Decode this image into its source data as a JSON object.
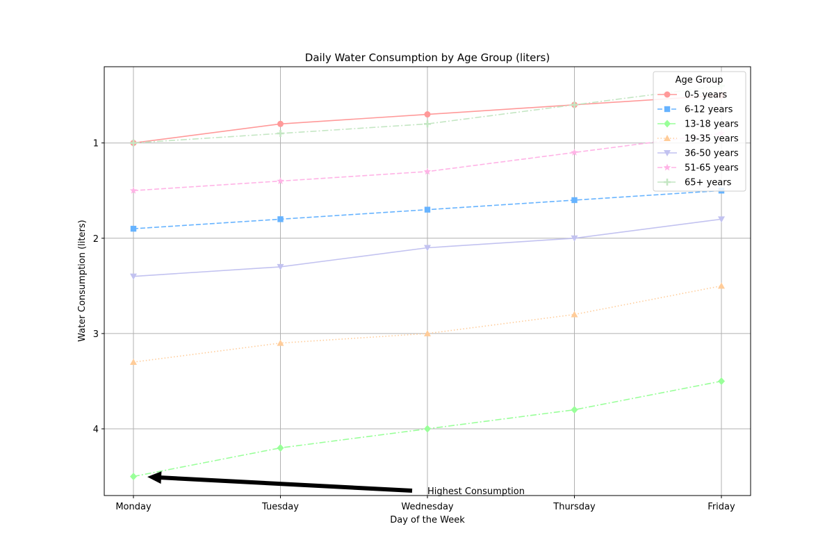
{
  "chart_data": {
    "type": "line",
    "title": "Daily Water Consumption by Age Group (liters)",
    "xlabel": "Day of the Week",
    "ylabel": "Water Consumption (liters)",
    "categories": [
      "Monday",
      "Tuesday",
      "Wednesday",
      "Thursday",
      "Friday"
    ],
    "y_inverted": true,
    "ylim": [
      4.7,
      0.2
    ],
    "yticks": [
      1,
      2,
      3,
      4
    ],
    "grid": true,
    "legend": {
      "title": "Age Group",
      "placement": "top-right"
    },
    "series": [
      {
        "name": "0-5 years",
        "values": [
          1.0,
          0.8,
          0.7,
          0.6,
          0.5
        ],
        "color": "#ff9999",
        "dash": "solid",
        "marker": "circle"
      },
      {
        "name": "6-12 years",
        "values": [
          1.9,
          1.8,
          1.7,
          1.6,
          1.5
        ],
        "color": "#66b3ff",
        "dash": "dashed",
        "marker": "square"
      },
      {
        "name": "13-18 years",
        "values": [
          4.5,
          4.2,
          4.0,
          3.8,
          3.5
        ],
        "color": "#99ff99",
        "dash": "dashdot",
        "marker": "diamond"
      },
      {
        "name": "19-35 years",
        "values": [
          3.3,
          3.1,
          3.0,
          2.8,
          2.5
        ],
        "color": "#ffcc99",
        "dash": "dotted",
        "marker": "triangle-up"
      },
      {
        "name": "36-50 years",
        "values": [
          2.4,
          2.3,
          2.1,
          2.0,
          1.8
        ],
        "color": "#c2c2f0",
        "dash": "solid",
        "marker": "triangle-down"
      },
      {
        "name": "51-65 years",
        "values": [
          1.5,
          1.4,
          1.3,
          1.1,
          0.9
        ],
        "color": "#ffb3e6",
        "dash": "dashed",
        "marker": "star"
      },
      {
        "name": "65+ years",
        "values": [
          1.0,
          0.9,
          0.8,
          0.6,
          0.4
        ],
        "color": "#c4e6c3",
        "dash": "dashdot",
        "marker": "plus"
      }
    ],
    "annotations": [
      {
        "text": "Highest Consumption",
        "target_category": "Monday",
        "target_value": 4.5,
        "text_category_pos": 2,
        "text_value_pos": 4.7
      }
    ]
  }
}
